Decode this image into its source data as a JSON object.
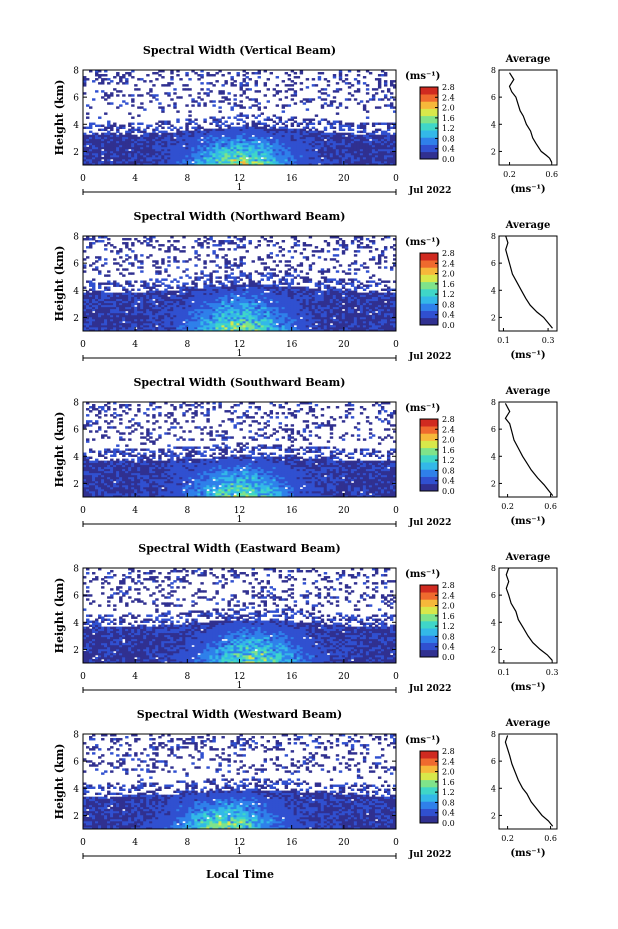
{
  "figure": {
    "xlabel": "Local Time",
    "date_label": "Jul 2022",
    "day_label": "1",
    "colorbar_unit": "(ms⁻¹)",
    "profile_title": "Average",
    "profile_xlabel": "(ms⁻¹)"
  },
  "colormap": [
    "#303090",
    "#3050d0",
    "#2f80ea",
    "#33b8e8",
    "#3fd6c8",
    "#7fe38a",
    "#d8e84a",
    "#f6b83a",
    "#ef6a2e",
    "#d02a20"
  ],
  "chart_data": [
    {
      "type": "heatmap",
      "title": "Spectral Width (Vertical Beam)",
      "xlabel": "Local Time",
      "ylabel": "Height (km)",
      "x_ticks": [
        "0",
        "4",
        "8",
        "12",
        "16",
        "20",
        "0"
      ],
      "y_ticks": [
        "2",
        "4",
        "6",
        "8"
      ],
      "xlim": [
        0,
        24
      ],
      "ylim": [
        1,
        8
      ],
      "colorbar": {
        "unit": "(ms⁻¹)",
        "ticks": [
          "0.0",
          "0.4",
          "0.8",
          "1.2",
          "1.6",
          "2.0",
          "2.4",
          "2.8"
        ],
        "range": [
          0,
          2.8
        ]
      },
      "field": {
        "low_layer_top_km": 3.2,
        "low_layer_top_dome_km": 3.8,
        "peak_value": 2.8,
        "peak_time_h": 12,
        "echo_ceiling_km": 8.0
      },
      "profile": {
        "type": "line",
        "title": "Average",
        "xlabel": "(ms⁻¹)",
        "x_ticks": [
          "0.2",
          "0.6"
        ],
        "xlim": [
          0.1,
          0.65
        ],
        "y_ticks": [
          "2",
          "4",
          "6",
          "8"
        ],
        "ylim": [
          1,
          8
        ],
        "points": [
          [
            0.6,
            1.2
          ],
          [
            0.58,
            1.5
          ],
          [
            0.55,
            1.7
          ],
          [
            0.5,
            2.0
          ],
          [
            0.45,
            2.6
          ],
          [
            0.42,
            3.0
          ],
          [
            0.4,
            3.5
          ],
          [
            0.36,
            4.0
          ],
          [
            0.33,
            4.6
          ],
          [
            0.3,
            5.0
          ],
          [
            0.28,
            5.5
          ],
          [
            0.26,
            6.0
          ],
          [
            0.22,
            6.4
          ],
          [
            0.2,
            6.8
          ],
          [
            0.24,
            7.3
          ],
          [
            0.2,
            7.8
          ]
        ]
      }
    },
    {
      "type": "heatmap",
      "title": "Spectral Width (Northward Beam)",
      "xlabel": "Local Time",
      "ylabel": "Height (km)",
      "x_ticks": [
        "0",
        "4",
        "8",
        "12",
        "16",
        "20",
        "0"
      ],
      "y_ticks": [
        "2",
        "4",
        "6",
        "8"
      ],
      "xlim": [
        0,
        24
      ],
      "ylim": [
        1,
        8
      ],
      "colorbar": {
        "unit": "(ms⁻¹)",
        "ticks": [
          "0.0",
          "0.4",
          "0.8",
          "1.2",
          "1.6",
          "2.0",
          "2.4",
          "2.8"
        ],
        "range": [
          0,
          2.8
        ]
      },
      "field": {
        "low_layer_top_km": 3.8,
        "low_layer_top_dome_km": 4.4,
        "peak_value": 2.4,
        "peak_time_h": 12,
        "echo_ceiling_km": 8.0
      },
      "profile": {
        "type": "line",
        "title": "Average",
        "xlabel": "(ms⁻¹)",
        "x_ticks": [
          "0.1",
          "0.3"
        ],
        "xlim": [
          0.08,
          0.34
        ],
        "y_ticks": [
          "2",
          "4",
          "6",
          "8"
        ],
        "ylim": [
          1,
          8
        ],
        "points": [
          [
            0.32,
            1.2
          ],
          [
            0.3,
            1.6
          ],
          [
            0.28,
            2.0
          ],
          [
            0.25,
            2.4
          ],
          [
            0.22,
            2.9
          ],
          [
            0.2,
            3.4
          ],
          [
            0.18,
            4.0
          ],
          [
            0.16,
            4.6
          ],
          [
            0.14,
            5.2
          ],
          [
            0.13,
            5.8
          ],
          [
            0.12,
            6.4
          ],
          [
            0.11,
            7.0
          ],
          [
            0.12,
            7.5
          ],
          [
            0.11,
            8.0
          ]
        ]
      }
    },
    {
      "type": "heatmap",
      "title": "Spectral Width (Southward Beam)",
      "xlabel": "Local Time",
      "ylabel": "Height (km)",
      "x_ticks": [
        "0",
        "4",
        "8",
        "12",
        "16",
        "20",
        "0"
      ],
      "y_ticks": [
        "2",
        "4",
        "6",
        "8"
      ],
      "xlim": [
        0,
        24
      ],
      "ylim": [
        1,
        8
      ],
      "colorbar": {
        "unit": "(ms⁻¹)",
        "ticks": [
          "0.0",
          "0.4",
          "0.8",
          "1.2",
          "1.6",
          "2.0",
          "2.4",
          "2.8"
        ],
        "range": [
          0,
          2.8
        ]
      },
      "field": {
        "low_layer_top_km": 3.6,
        "low_layer_top_dome_km": 4.0,
        "peak_value": 2.4,
        "peak_time_h": 12,
        "echo_ceiling_km": 8.0
      },
      "profile": {
        "type": "line",
        "title": "Average",
        "xlabel": "(ms⁻¹)",
        "x_ticks": [
          "0.2",
          "0.6"
        ],
        "xlim": [
          0.12,
          0.66
        ],
        "y_ticks": [
          "2",
          "4",
          "6",
          "8"
        ],
        "ylim": [
          1,
          8
        ],
        "points": [
          [
            0.62,
            1.1
          ],
          [
            0.58,
            1.5
          ],
          [
            0.54,
            1.9
          ],
          [
            0.48,
            2.4
          ],
          [
            0.42,
            3.0
          ],
          [
            0.38,
            3.5
          ],
          [
            0.34,
            4.0
          ],
          [
            0.3,
            4.6
          ],
          [
            0.26,
            5.2
          ],
          [
            0.24,
            5.8
          ],
          [
            0.22,
            6.4
          ],
          [
            0.18,
            6.8
          ],
          [
            0.22,
            7.3
          ],
          [
            0.18,
            7.9
          ]
        ]
      }
    },
    {
      "type": "heatmap",
      "title": "Spectral Width (Eastward Beam)",
      "xlabel": "Local Time",
      "ylabel": "Height (km)",
      "x_ticks": [
        "0",
        "4",
        "8",
        "12",
        "16",
        "20",
        "0"
      ],
      "y_ticks": [
        "2",
        "4",
        "6",
        "8"
      ],
      "xlim": [
        0,
        24
      ],
      "ylim": [
        1,
        8
      ],
      "colorbar": {
        "unit": "(ms⁻¹)",
        "ticks": [
          "0.0",
          "0.4",
          "0.8",
          "1.2",
          "1.6",
          "2.0",
          "2.4",
          "2.8"
        ],
        "range": [
          0,
          2.8
        ]
      },
      "field": {
        "low_layer_top_km": 3.6,
        "low_layer_top_dome_km": 4.2,
        "peak_value": 2.4,
        "peak_time_h": 13,
        "echo_ceiling_km": 8.0
      },
      "profile": {
        "type": "line",
        "title": "Average",
        "xlabel": "(ms⁻¹)",
        "x_ticks": [
          "0.1",
          "0.3"
        ],
        "xlim": [
          0.08,
          0.32
        ],
        "y_ticks": [
          "2",
          "4",
          "6",
          "8"
        ],
        "ylim": [
          1,
          8
        ],
        "points": [
          [
            0.3,
            1.2
          ],
          [
            0.28,
            1.6
          ],
          [
            0.25,
            2.0
          ],
          [
            0.22,
            2.5
          ],
          [
            0.2,
            3.0
          ],
          [
            0.18,
            3.6
          ],
          [
            0.16,
            4.2
          ],
          [
            0.15,
            4.8
          ],
          [
            0.13,
            5.4
          ],
          [
            0.12,
            6.0
          ],
          [
            0.11,
            6.5
          ],
          [
            0.12,
            7.0
          ],
          [
            0.11,
            7.5
          ],
          [
            0.12,
            8.0
          ]
        ]
      }
    },
    {
      "type": "heatmap",
      "title": "Spectral Width (Westward Beam)",
      "xlabel": "Local Time",
      "ylabel": "Height (km)",
      "x_ticks": [
        "0",
        "4",
        "8",
        "12",
        "16",
        "20",
        "0"
      ],
      "y_ticks": [
        "2",
        "4",
        "6",
        "8"
      ],
      "xlim": [
        0,
        24
      ],
      "ylim": [
        1,
        8
      ],
      "colorbar": {
        "unit": "(ms⁻¹)",
        "ticks": [
          "0.0",
          "0.4",
          "0.8",
          "1.2",
          "1.6",
          "2.0",
          "2.4",
          "2.8"
        ],
        "range": [
          0,
          2.8
        ]
      },
      "field": {
        "low_layer_top_km": 3.4,
        "low_layer_top_dome_km": 3.9,
        "peak_value": 2.6,
        "peak_time_h": 11,
        "echo_ceiling_km": 8.0
      },
      "profile": {
        "type": "line",
        "title": "Average",
        "xlabel": "(ms⁻¹)",
        "x_ticks": [
          "0.2",
          "0.6"
        ],
        "xlim": [
          0.12,
          0.66
        ],
        "y_ticks": [
          "2",
          "4",
          "6",
          "8"
        ],
        "ylim": [
          1,
          8
        ],
        "points": [
          [
            0.62,
            1.2
          ],
          [
            0.58,
            1.6
          ],
          [
            0.52,
            2.0
          ],
          [
            0.46,
            2.6
          ],
          [
            0.42,
            3.0
          ],
          [
            0.38,
            3.6
          ],
          [
            0.34,
            4.0
          ],
          [
            0.3,
            4.6
          ],
          [
            0.27,
            5.2
          ],
          [
            0.24,
            5.8
          ],
          [
            0.22,
            6.4
          ],
          [
            0.2,
            6.9
          ],
          [
            0.18,
            7.4
          ],
          [
            0.2,
            7.9
          ]
        ]
      }
    }
  ]
}
